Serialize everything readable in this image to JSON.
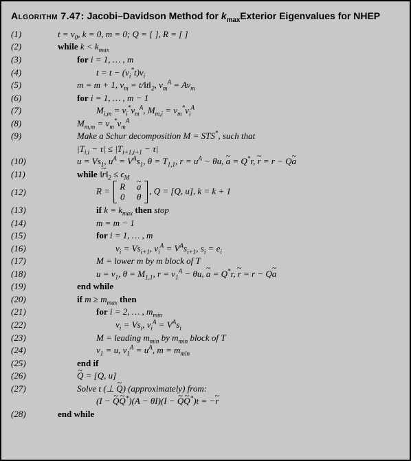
{
  "header": {
    "label": "Algorithm 7.47:",
    "title_part1": "Jacobi–Davidson Method for ",
    "kmax": "k",
    "kmax_sub": "max",
    "title_part2": "Exterior Eigenvalues for NHEP"
  },
  "colors": {
    "background": "#c8c8c8",
    "border": "#000000",
    "text": "#000000"
  },
  "typography": {
    "header_font": "Arial, Helvetica, sans-serif",
    "body_font": "Times New Roman, serif",
    "header_size_pt": 14,
    "body_size_pt": 13
  },
  "lines": [
    {
      "n": "(1)",
      "indent": 1,
      "html": "t = v<sub>0</sub>, k = 0, m = 0; Q = [ ], R = [ ]"
    },
    {
      "n": "(2)",
      "indent": 1,
      "html": "<span class='bold'>while</span> k &lt; k<sub>max</sub>"
    },
    {
      "n": "(3)",
      "indent": 2,
      "html": "<span class='bold'>for</span> i = 1, … , m"
    },
    {
      "n": "(4)",
      "indent": 3,
      "html": "t = t − (v<sub>i</sub><sup>*</sup>t)v<sub>i</sub>"
    },
    {
      "n": "(5)",
      "indent": 2,
      "html": "m = m + 1, v<sub>m</sub> = t/‖t‖<sub>2</sub>, v<sub>m</sub><sup>A</sup> = Av<sub>m</sub>"
    },
    {
      "n": "(6)",
      "indent": 2,
      "html": "<span class='bold'>for</span> i = 1, … , m − 1"
    },
    {
      "n": "(7)",
      "indent": 3,
      "html": "M<sub>i,m</sub> = v<sub>i</sub><sup>*</sup>v<sub>m</sub><sup>A</sup>, M<sub>m,i</sub> = v<sub>m</sub><sup>*</sup>v<sub>i</sub><sup>A</sup>"
    },
    {
      "n": "(8)",
      "indent": 2,
      "html": "M<sub>m,m</sub> = v<sub>m</sub><sup>*</sup>v<sub>m</sub><sup>A</sup>"
    },
    {
      "n": "(9)",
      "indent": 2,
      "html": "Make a Schur decomposition M = STS<sup>*</sup>, such that"
    },
    {
      "n": "",
      "indent": 2,
      "html": "|T<sub>i,i</sub> − τ| ≤ |T<sub>i+1,i+1</sub> − τ|"
    },
    {
      "n": "(10)",
      "indent": 2,
      "html": "u = Vs<sub>1</sub>, u<sup>A</sup> = V<sup>A</sup>s<sub>1</sub>, θ = T<sub>1,1</sub>, r = u<sup>A</sup> − θu, <span class='tilde'>a</span> = Q<sup>*</sup>r, <span class='tilde'>r</span> = r − Q<span class='tilde'>a</span>"
    },
    {
      "n": "(11)",
      "indent": 2,
      "html": "<span class='bold'>while</span> ‖<span class='tilde'>r</span>‖<sub>2</sub> ≤ ϵ<sub>M</sub>"
    },
    {
      "n": "(12)",
      "indent": 3,
      "tall": true,
      "html": "R = <span class='matrix'><span class='matrix-row'><span class='matrix-cell'>R</span><span class='matrix-cell'><span class='tilde'>a</span></span></span><span class='matrix-row'><span class='matrix-cell'>0</span><span class='matrix-cell'>θ</span></span></span>, Q = [Q, u], k = k + 1"
    },
    {
      "n": "(13)",
      "indent": 3,
      "html": "<span class='bold'>if</span> k = k<sub>max</sub> <span class='bold'>then</span> stop"
    },
    {
      "n": "(14)",
      "indent": 3,
      "html": "m = m − 1"
    },
    {
      "n": "(15)",
      "indent": 3,
      "html": "<span class='bold'>for</span> i = 1, … , m"
    },
    {
      "n": "(16)",
      "indent": 4,
      "html": "v<sub>i</sub> = Vs<sub>i+1</sub>, v<sub>i</sub><sup>A</sup> = V<sup>A</sup>s<sub>i+1</sub>, s<sub>i</sub> = e<sub>i</sub>"
    },
    {
      "n": "(17)",
      "indent": 3,
      "html": "M = lower m by m block of T"
    },
    {
      "n": "(18)",
      "indent": 3,
      "html": "u = v<sub>1</sub>, θ = M<sub>1,1</sub>, r = v<sub>1</sub><sup>A</sup> − θu, <span class='tilde'>a</span> = Q<sup>*</sup>r, <span class='tilde'>r</span> = r − Q<span class='tilde'>a</span>"
    },
    {
      "n": "(19)",
      "indent": 2,
      "html": "<span class='bold'>end while</span>"
    },
    {
      "n": "(20)",
      "indent": 2,
      "html": "<span class='bold'>if</span> m ≥ m<sub>max</sub> <span class='bold'>then</span>"
    },
    {
      "n": "(21)",
      "indent": 3,
      "html": "<span class='bold'>for</span> i = 2, … , m<sub>min</sub>"
    },
    {
      "n": "(22)",
      "indent": 4,
      "html": "v<sub>i</sub> = Vs<sub>i</sub>, v<sub>i</sub><sup>A</sup> = V<sup>A</sup>s<sub>i</sub>"
    },
    {
      "n": "(23)",
      "indent": 3,
      "html": "M = leading m<sub>min</sub> by m<sub>min</sub> block of T"
    },
    {
      "n": "(24)",
      "indent": 3,
      "html": "v<sub>1</sub> = u, v<sub>1</sub><sup>A</sup> = u<sup>A</sup>, m = m<sub>min</sub>"
    },
    {
      "n": "(25)",
      "indent": 2,
      "html": "<span class='bold'>end if</span>"
    },
    {
      "n": "(26)",
      "indent": 2,
      "html": "<span class='tilde'>Q</span> = [Q, u]"
    },
    {
      "n": "(27)",
      "indent": 2,
      "html": "Solve t (⊥ <span class='tilde'>Q</span>) (approximately) from:"
    },
    {
      "n": "",
      "indent": 3,
      "html": "(I − <span class='tilde'>Q</span><span class='tilde'>Q</span><sup>*</sup>)(A − θI)(I − <span class='tilde'>Q</span><span class='tilde'>Q</span><sup>*</sup>)t = −<span class='tilde'>r</span>"
    },
    {
      "n": "(28)",
      "indent": 1,
      "html": "<span class='bold'>end while</span>"
    }
  ]
}
